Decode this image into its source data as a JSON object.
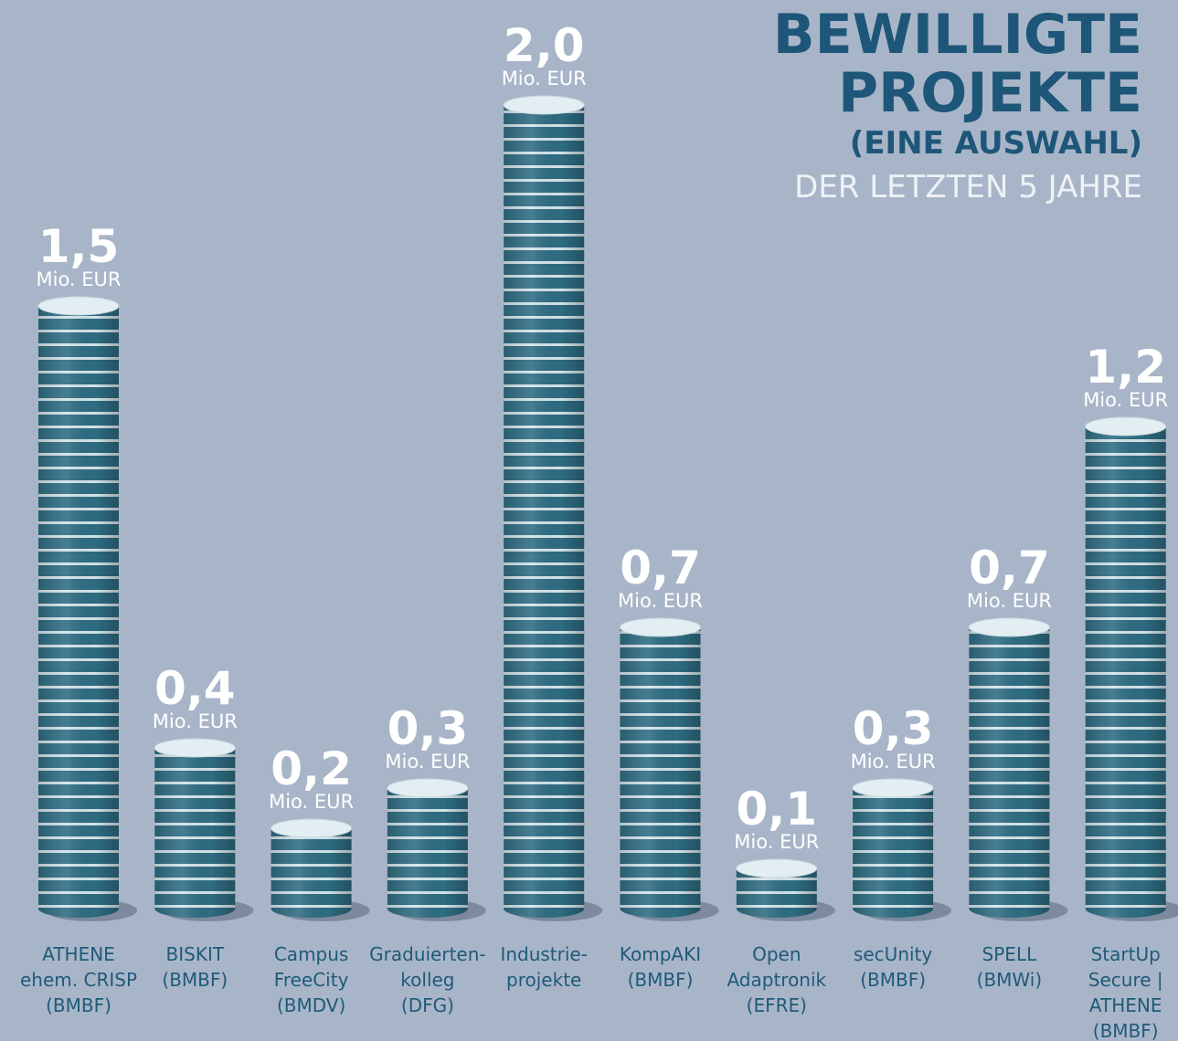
{
  "chart_data": {
    "type": "coin-stack",
    "title_lines": [
      "BEWILLIGTE",
      "PROJEKTE"
    ],
    "subtitle": "(EINE AUSWAHL)",
    "subtitle2": "DER LETZTEN 5 JAHRE",
    "unit_label": "Mio. EUR",
    "categories": [
      [
        "ATHENE",
        "ehem. CRISP",
        "(BMBF)"
      ],
      [
        "BISKIT",
        "(BMBF)"
      ],
      [
        "Campus",
        "FreeCity",
        "(BMDV)"
      ],
      [
        "Graduierten-",
        "kolleg",
        "(DFG)"
      ],
      [
        "Industrie-",
        "projekte"
      ],
      [
        "KompAKI",
        "(BMBF)"
      ],
      [
        "Open",
        "Adaptronik",
        "(EFRE)"
      ],
      [
        "secUnity",
        "(BMBF)"
      ],
      [
        "SPELL",
        "(BMWi)"
      ],
      [
        "StartUp",
        "Secure |",
        "ATHENE",
        "(BMBF)"
      ]
    ],
    "values": [
      1.5,
      0.4,
      0.2,
      0.3,
      2.0,
      0.7,
      0.1,
      0.3,
      0.7,
      1.2
    ],
    "value_labels": [
      "1,5",
      "0,4",
      "0,2",
      "0,3",
      "2,0",
      "0,7",
      "0,1",
      "0,3",
      "0,7",
      "1,2"
    ],
    "color": "#2e6c82"
  }
}
